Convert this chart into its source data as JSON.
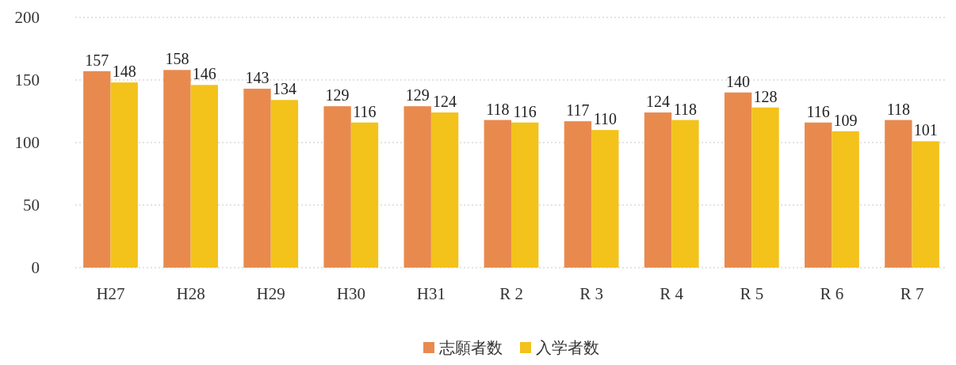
{
  "chart_data": {
    "type": "bar",
    "categories": [
      "H27",
      "H28",
      "H29",
      "H30",
      "H31",
      "R 2",
      "R 3",
      "R 4",
      "R 5",
      "R 6",
      "R 7"
    ],
    "series": [
      {
        "name": "志願者数",
        "color": "#e88a4e",
        "values": [
          157,
          158,
          143,
          129,
          129,
          118,
          117,
          124,
          140,
          116,
          118
        ]
      },
      {
        "name": "入学者数",
        "color": "#f3c21b",
        "values": [
          148,
          146,
          134,
          116,
          124,
          116,
          110,
          118,
          128,
          109,
          101
        ]
      }
    ],
    "ylim": [
      0,
      200
    ],
    "yticks": [
      0,
      50,
      100,
      150,
      200
    ],
    "grid": "y",
    "legend": "bottom",
    "data_labels": true
  }
}
